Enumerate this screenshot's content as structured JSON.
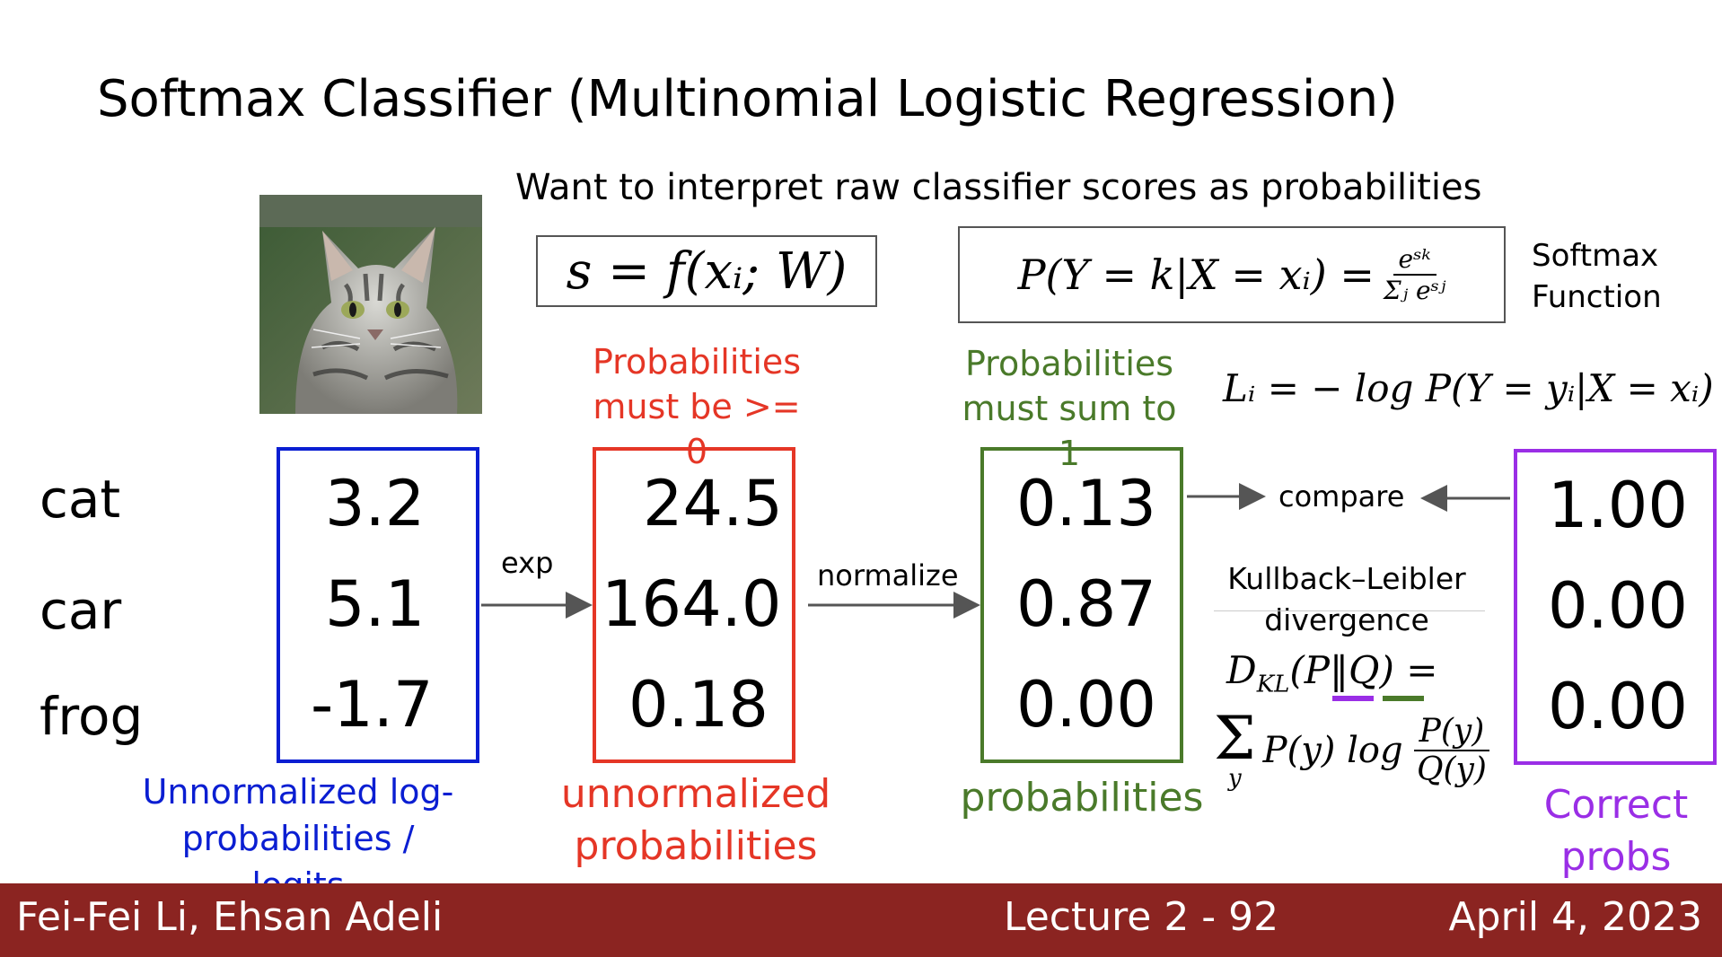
{
  "slide": {
    "title": "Softmax Classifier (Multinomial Logistic Regression)",
    "subtitle": "Want to interpret raw classifier scores as probabilities"
  },
  "equations": {
    "score": "s = f(xᵢ; W)",
    "softmax_lhs": "P(Y = k|X = xᵢ) =",
    "softmax_num": "eˢᵏ",
    "softmax_den": "Σⱼ eˢʲ",
    "softmax_label": "Softmax Function",
    "loss": "Lᵢ = − log P(Y = yᵢ|X = xᵢ)",
    "kl_title": "Kullback–Leibler divergence",
    "kl_lhs_prefix": "D",
    "kl_lhs_sub": "KL",
    "kl_P": "P",
    "kl_Q": "Q",
    "kl_sum_sub": "y",
    "kl_term": "P(y) log",
    "kl_num": "P(y)",
    "kl_den": "Q(y)"
  },
  "classes": [
    "cat",
    "car",
    "frog"
  ],
  "columns": {
    "logits": {
      "values": [
        "3.2",
        "5.1",
        "-1.7"
      ],
      "label": "Unnormalized log-probabilities / logits",
      "color": "#0a1ed2"
    },
    "unnormalized": {
      "values": [
        "24.5",
        "164.0",
        "0.18"
      ],
      "label": "unnormalized probabilities",
      "note": "Probabilities must be >= 0",
      "color": "#e53626"
    },
    "probabilities": {
      "values": [
        "0.13",
        "0.87",
        "0.00"
      ],
      "label": "probabilities",
      "note": "Probabilities must sum to 1",
      "color": "#4a7a2a"
    },
    "correct": {
      "values": [
        "1.00",
        "0.00",
        "0.00"
      ],
      "label": "Correct probs",
      "color": "#9a2ee6"
    }
  },
  "arrows": {
    "exp": "exp",
    "normalize": "normalize",
    "compare": "compare"
  },
  "footer": {
    "authors": "Fei-Fei Li, Ehsan Adeli",
    "lecture": "Lecture 2 - 92",
    "date": "April 4, 2023",
    "color": "#8b2421"
  }
}
